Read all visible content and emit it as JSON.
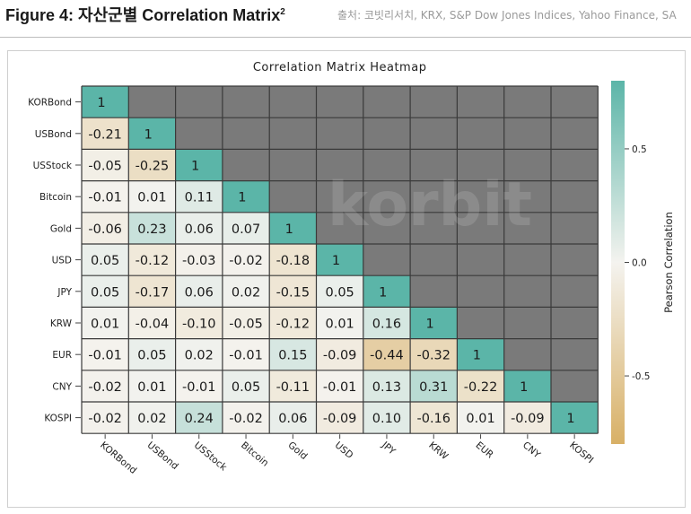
{
  "figure": {
    "title": "Figure 4: 자산군별 Correlation Matrix",
    "footnote_marker": "2",
    "source": "출처: 코빗리서치, KRX, S&P Dow Jones Indices, Yahoo Finance, SA"
  },
  "chart_data": {
    "type": "heatmap",
    "title": "Correlation Matrix Heatmap",
    "watermark": "korbit",
    "labels": [
      "KORBond",
      "USBond",
      "USStock",
      "Bitcoin",
      "Gold",
      "USD",
      "JPY",
      "KRW",
      "EUR",
      "CNY",
      "KOSPI"
    ],
    "matrix": [
      [
        1
      ],
      [
        -0.21,
        1
      ],
      [
        -0.05,
        -0.25,
        1
      ],
      [
        -0.01,
        0.01,
        0.11,
        1
      ],
      [
        -0.06,
        0.23,
        0.06,
        0.07,
        1
      ],
      [
        0.05,
        -0.12,
        -0.03,
        -0.02,
        -0.18,
        1
      ],
      [
        0.05,
        -0.17,
        0.06,
        0.02,
        -0.15,
        0.05,
        1
      ],
      [
        0.01,
        -0.04,
        -0.1,
        -0.05,
        -0.12,
        0.01,
        0.16,
        1
      ],
      [
        -0.01,
        0.05,
        0.02,
        -0.01,
        0.15,
        -0.09,
        -0.44,
        -0.32,
        1
      ],
      [
        -0.02,
        0.01,
        -0.01,
        0.05,
        -0.11,
        -0.01,
        0.13,
        0.31,
        -0.22,
        1
      ],
      [
        -0.02,
        0.02,
        0.24,
        -0.02,
        0.06,
        -0.09,
        0.1,
        -0.16,
        0.01,
        -0.09,
        1
      ]
    ],
    "cell_labels": [
      [
        "1"
      ],
      [
        "-0.21",
        "1"
      ],
      [
        "-0.05",
        "-0.25",
        "1"
      ],
      [
        "-0.01",
        "0.01",
        "0.11",
        "1"
      ],
      [
        "-0.06",
        "0.23",
        "0.06",
        "0.07",
        "1"
      ],
      [
        "0.05",
        "-0.12",
        "-0.03",
        "-0.02",
        "-0.18",
        "1"
      ],
      [
        "0.05",
        "-0.17",
        "0.06",
        "0.02",
        "-0.15",
        "0.05",
        "1"
      ],
      [
        "0.01",
        "-0.04",
        "-0.10",
        "-0.05",
        "-0.12",
        "0.01",
        "0.16",
        "1"
      ],
      [
        "-0.01",
        "0.05",
        "0.02",
        "-0.01",
        "0.15",
        "-0.09",
        "-0.44",
        "-0.32",
        "1"
      ],
      [
        "-0.02",
        "0.01",
        "-0.01",
        "0.05",
        "-0.11",
        "-0.01",
        "0.13",
        "0.31",
        "-0.22",
        "1"
      ],
      [
        "-0.02",
        "0.02",
        "0.24",
        "-0.02",
        "0.06",
        "-0.09",
        "0.10",
        "-0.16",
        "0.01",
        "-0.09",
        "1"
      ]
    ],
    "colorbar": {
      "label": "Pearson Correlation",
      "range": [
        -0.8,
        0.8
      ],
      "ticks": [
        0.5,
        0.0,
        -0.5
      ],
      "tick_labels": [
        "0.5",
        "0.0",
        "-0.5"
      ]
    },
    "colors": {
      "positive": "#5bb5a8",
      "neutral": "#f4f3ef",
      "negative": "#d8b066",
      "masked": "#7a7a7a",
      "grid": "#3a3a3a"
    }
  }
}
